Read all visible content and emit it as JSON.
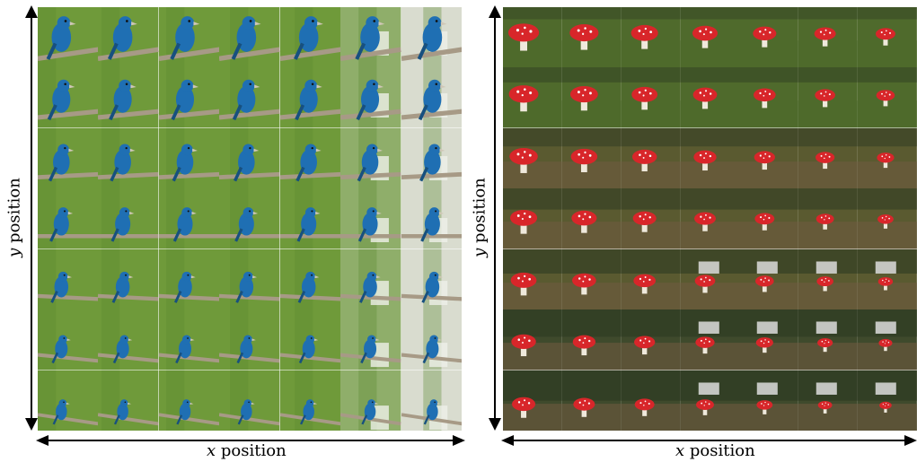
{
  "figure": {
    "left_panel": {
      "subject": "bird",
      "x_axis_label": {
        "var": "x",
        "word": "position"
      },
      "y_axis_label": {
        "var": "y",
        "word": "position"
      }
    },
    "right_panel": {
      "subject": "mushroom",
      "x_axis_label": {
        "var": "x",
        "word": "position"
      },
      "y_axis_label": {
        "var": "y",
        "word": "position"
      }
    }
  },
  "colors": {
    "bird_bg": "#6f9a3a",
    "bird_body": "#1f6fb3",
    "branch": "#a79a86",
    "mushroom_cap": "#d8262a",
    "mushroom_stem": "#efe9dc",
    "grass": "#4f6a2c",
    "soil": "#6e5a3f"
  },
  "icons": {
    "arrow": "double-headed-arrow"
  }
}
